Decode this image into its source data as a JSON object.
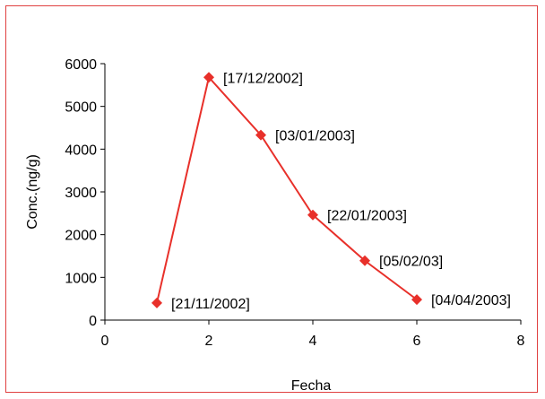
{
  "chart_data": {
    "type": "line",
    "title": "",
    "xlabel": "Fecha",
    "ylabel": "Conc.(ng/g)",
    "xlim": [
      0,
      8
    ],
    "ylim": [
      0,
      6000
    ],
    "x_ticks": [
      "0",
      "2",
      "4",
      "6",
      "8"
    ],
    "y_ticks": [
      "0",
      "1000",
      "2000",
      "3000",
      "4000",
      "5000",
      "6000"
    ],
    "grid": false,
    "legend": "none",
    "series": [
      {
        "color": "#e8302a",
        "marker": "diamond",
        "points": [
          {
            "x": 1,
            "y": 400,
            "label": "[21/11/2002]"
          },
          {
            "x": 2,
            "y": 5680,
            "label": "[17/12/2002]"
          },
          {
            "x": 3,
            "y": 4330,
            "label": "[03/01/2003]"
          },
          {
            "x": 4,
            "y": 2460,
            "label": "[22/01/2003]"
          },
          {
            "x": 5,
            "y": 1390,
            "label": "[05/02/03]"
          },
          {
            "x": 6,
            "y": 480,
            "label": "[04/04/2003]"
          }
        ]
      }
    ]
  }
}
